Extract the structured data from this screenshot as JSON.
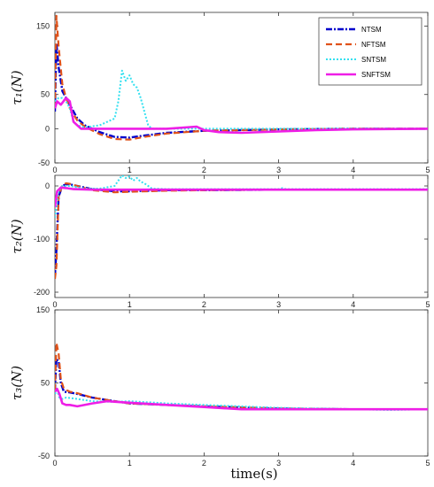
{
  "xlabel": "time(s)",
  "colors": {
    "NTSM": "#0000cc",
    "NFTSM": "#e0521a",
    "SNTSM": "#33e0f0",
    "SNFTSM": "#ee1ee6"
  },
  "legend": {
    "panel": 0,
    "position": "top-right",
    "entries": [
      "NTSM",
      "NFTSM",
      "SNTSM",
      "SNFTSM"
    ]
  },
  "chart_data": [
    {
      "type": "line",
      "ylabel": "τ₁(N)",
      "xlim": [
        0,
        5
      ],
      "ylim": [
        -50,
        170
      ],
      "xticks": [
        0,
        1,
        2,
        3,
        4,
        5
      ],
      "yticks": [
        -50,
        0,
        50,
        150
      ],
      "series": [
        {
          "name": "NTSM",
          "style": "dashdot",
          "x": [
            0,
            0.02,
            0.05,
            0.1,
            0.15,
            0.2,
            0.3,
            0.4,
            0.6,
            0.8,
            1.0,
            1.2,
            1.5,
            2.0,
            2.5,
            3.0,
            4.0,
            5.0
          ],
          "y": [
            25,
            125,
            90,
            55,
            45,
            35,
            15,
            5,
            -5,
            -12,
            -13,
            -10,
            -6,
            -3,
            -2,
            -1,
            0,
            0
          ]
        },
        {
          "name": "NFTSM",
          "style": "dashed",
          "x": [
            0,
            0.02,
            0.05,
            0.1,
            0.15,
            0.2,
            0.3,
            0.4,
            0.6,
            0.8,
            1.0,
            1.2,
            1.5,
            2.0,
            2.5,
            3.0,
            4.0,
            5.0
          ],
          "y": [
            30,
            165,
            120,
            65,
            45,
            30,
            12,
            3,
            -8,
            -15,
            -16,
            -12,
            -7,
            -3,
            -2,
            -1,
            0,
            0
          ]
        },
        {
          "name": "SNTSM",
          "style": "dotted",
          "x": [
            0,
            0.05,
            0.1,
            0.15,
            0.2,
            0.25,
            0.3,
            0.4,
            0.6,
            0.8,
            0.85,
            0.9,
            0.95,
            1.0,
            1.05,
            1.1,
            1.15,
            1.2,
            1.25,
            1.3,
            1.5,
            2.0,
            3.0,
            5.0
          ],
          "y": [
            40,
            45,
            45,
            40,
            30,
            10,
            5,
            2,
            5,
            15,
            40,
            85,
            70,
            78,
            65,
            60,
            45,
            25,
            5,
            0,
            0,
            0,
            0,
            0
          ]
        },
        {
          "name": "SNFTSM",
          "style": "solid",
          "x": [
            0,
            0.03,
            0.08,
            0.15,
            0.2,
            0.25,
            0.35,
            0.6,
            1.0,
            1.5,
            1.9,
            2.0,
            2.2,
            2.5,
            3.0,
            3.5,
            4.0,
            5.0
          ],
          "y": [
            30,
            40,
            35,
            45,
            40,
            10,
            0,
            0,
            0,
            0,
            3,
            -2,
            -5,
            -6,
            -4,
            -2,
            -1,
            0
          ]
        }
      ]
    },
    {
      "type": "line",
      "ylabel": "τ₂(N)",
      "xlim": [
        0,
        5
      ],
      "ylim": [
        -210,
        20
      ],
      "xticks": [
        0,
        1,
        2,
        3,
        4,
        5
      ],
      "yticks": [
        -200,
        -100,
        0
      ],
      "series": [
        {
          "name": "NTSM",
          "style": "dashdot",
          "x": [
            0,
            0.02,
            0.05,
            0.1,
            0.15,
            0.2,
            0.3,
            0.5,
            0.8,
            1.0,
            1.5,
            2.0,
            3.0,
            4.0,
            5.0
          ],
          "y": [
            -170,
            -120,
            -20,
            0,
            3,
            3,
            0,
            -6,
            -10,
            -10,
            -8,
            -8,
            -7,
            -7,
            -7
          ]
        },
        {
          "name": "NFTSM",
          "style": "dashed",
          "x": [
            0,
            0.02,
            0.05,
            0.1,
            0.15,
            0.2,
            0.3,
            0.5,
            0.8,
            1.0,
            1.5,
            2.0,
            3.0,
            4.0,
            5.0
          ],
          "y": [
            -175,
            -150,
            -20,
            2,
            5,
            4,
            0,
            -8,
            -12,
            -11,
            -9,
            -8,
            -7,
            -7,
            -7
          ]
        },
        {
          "name": "SNTSM",
          "style": "dotted",
          "x": [
            0,
            0.05,
            0.1,
            0.2,
            0.4,
            0.6,
            0.8,
            0.85,
            0.9,
            0.95,
            1.0,
            1.05,
            1.1,
            1.15,
            1.2,
            1.25,
            1.3,
            1.5,
            2.0,
            3.0,
            3.05,
            3.1,
            4.0,
            5.0
          ],
          "y": [
            -60,
            -10,
            0,
            0,
            -5,
            -5,
            0,
            10,
            20,
            15,
            18,
            10,
            15,
            8,
            5,
            0,
            -5,
            -6,
            -6,
            -6,
            -4,
            -6,
            -6,
            -6
          ]
        },
        {
          "name": "SNFTSM",
          "style": "solid",
          "x": [
            0,
            0.03,
            0.08,
            0.15,
            0.25,
            0.5,
            1.0,
            1.5,
            2.0,
            3.0,
            4.0,
            5.0
          ],
          "y": [
            -40,
            -10,
            -3,
            -4,
            -6,
            -7,
            -7,
            -7,
            -7,
            -7,
            -7,
            -7
          ]
        }
      ]
    },
    {
      "type": "line",
      "ylabel": "τ₃(N)",
      "xlim": [
        0,
        5
      ],
      "ylim": [
        -50,
        150
      ],
      "xticks": [
        0,
        1,
        2,
        3,
        4,
        5
      ],
      "yticks": [
        -50,
        50,
        150
      ],
      "series": [
        {
          "name": "NTSM",
          "style": "dashdot",
          "x": [
            0,
            0.02,
            0.05,
            0.08,
            0.12,
            0.2,
            0.3,
            0.5,
            0.8,
            1.0,
            1.5,
            2.0,
            3.0,
            4.0,
            5.0
          ],
          "y": [
            40,
            82,
            80,
            50,
            38,
            37,
            35,
            30,
            25,
            22,
            20,
            18,
            15,
            14,
            14
          ]
        },
        {
          "name": "NFTSM",
          "style": "dashed",
          "x": [
            0,
            0.02,
            0.05,
            0.08,
            0.12,
            0.2,
            0.3,
            0.5,
            0.8,
            1.0,
            1.5,
            2.0,
            3.0,
            4.0,
            5.0
          ],
          "y": [
            40,
            105,
            90,
            55,
            42,
            38,
            36,
            30,
            25,
            22,
            20,
            18,
            15,
            14,
            14
          ]
        },
        {
          "name": "SNTSM",
          "style": "dotted",
          "x": [
            0,
            0.03,
            0.06,
            0.1,
            0.15,
            0.3,
            0.5,
            0.8,
            1.0,
            1.5,
            2.0,
            3.0,
            4.0,
            4.5,
            5.0
          ],
          "y": [
            35,
            40,
            30,
            28,
            30,
            28,
            25,
            24,
            25,
            22,
            20,
            16,
            14,
            13,
            14
          ]
        },
        {
          "name": "SNFTSM",
          "style": "solid",
          "x": [
            0,
            0.03,
            0.06,
            0.1,
            0.15,
            0.2,
            0.3,
            0.5,
            0.7,
            1.0,
            1.5,
            2.0,
            2.5,
            3.0,
            4.0,
            5.0
          ],
          "y": [
            38,
            42,
            35,
            22,
            20,
            20,
            18,
            22,
            25,
            23,
            20,
            17,
            14,
            14,
            14,
            14
          ]
        }
      ]
    }
  ]
}
